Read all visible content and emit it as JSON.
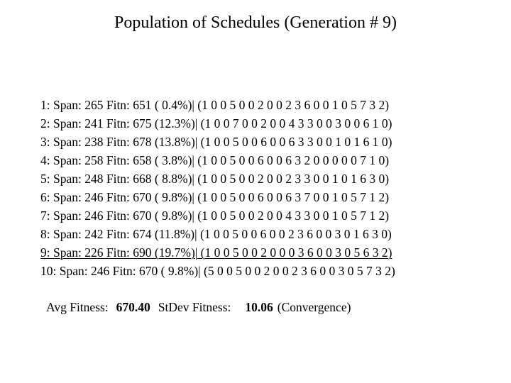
{
  "title": "Population of Schedules (Generation # 9)",
  "labels": {
    "span": "Span:",
    "fitn": "Fitn:"
  },
  "population": [
    {
      "index": "1",
      "span": "265",
      "fitn": "651",
      "pct": "( 0.4%)",
      "schedule": "1 0 0 5 0 0 2 0 0 2 3 6 0 0 1 0 5 7 3 2",
      "underlined": false
    },
    {
      "index": "2",
      "span": "241",
      "fitn": "675",
      "pct": "(12.3%)",
      "schedule": "1 0 0 7 0 0 2 0 0 4 3 3 0 0 3 0 0 6 1 0",
      "underlined": false
    },
    {
      "index": "3",
      "span": "238",
      "fitn": "678",
      "pct": "(13.8%)",
      "schedule": "1 0 0 5 0 0 6 0 0 6 3 3 0 0 1 0 1 6 1 0",
      "underlined": false
    },
    {
      "index": "4",
      "span": "258",
      "fitn": "658",
      "pct": "( 3.8%)",
      "schedule": "1 0 0 5 0 0 6 0 0 6 3 2 0 0 0 0 0 7 1 0",
      "underlined": false
    },
    {
      "index": "5",
      "span": "248",
      "fitn": "668",
      "pct": "( 8.8%)",
      "schedule": "1 0 0 5 0 0 2 0 0 2 3 3 0 0 1 0 1 6 3 0",
      "underlined": false
    },
    {
      "index": "6",
      "span": "246",
      "fitn": "670",
      "pct": "( 9.8%)",
      "schedule": "1 0 0 5 0 0 6 0 0 6 3 7 0 0 1 0 5 7 1 2",
      "underlined": false
    },
    {
      "index": "7",
      "span": "246",
      "fitn": "670",
      "pct": "( 9.8%)",
      "schedule": "1 0 0 5 0 0 2 0 0 4 3 3 0 0 1 0 5 7 1 2",
      "underlined": false
    },
    {
      "index": "8",
      "span": "242",
      "fitn": "674",
      "pct": "(11.8%)",
      "schedule": "1 0 0 5 0 0 6 0 0 2 3 6 0 0 3 0 1 6 3 0",
      "underlined": false
    },
    {
      "index": "9",
      "span": "226",
      "fitn": "690",
      "pct": "(19.7%)",
      "schedule": "1 0 0 5 0 0 2 0 0 0 3 6 0 0 3 0 5 6 3 2",
      "underlined": true
    },
    {
      "index": "10",
      "span": "246",
      "fitn": "670",
      "pct": "( 9.8%)",
      "schedule": "5 0 0 5 0 0 2 0 0 2 3 6 0 0 3 0 5 7 3 2",
      "underlined": false
    }
  ],
  "summary": {
    "avg_label": "Avg Fitness:",
    "avg_value": "670.40",
    "stdev_label": "StDev Fitness:",
    "stdev_value": "10.06",
    "suffix": "(Convergence)"
  },
  "colors": {
    "background": "#ffffff",
    "text": "#000000"
  }
}
